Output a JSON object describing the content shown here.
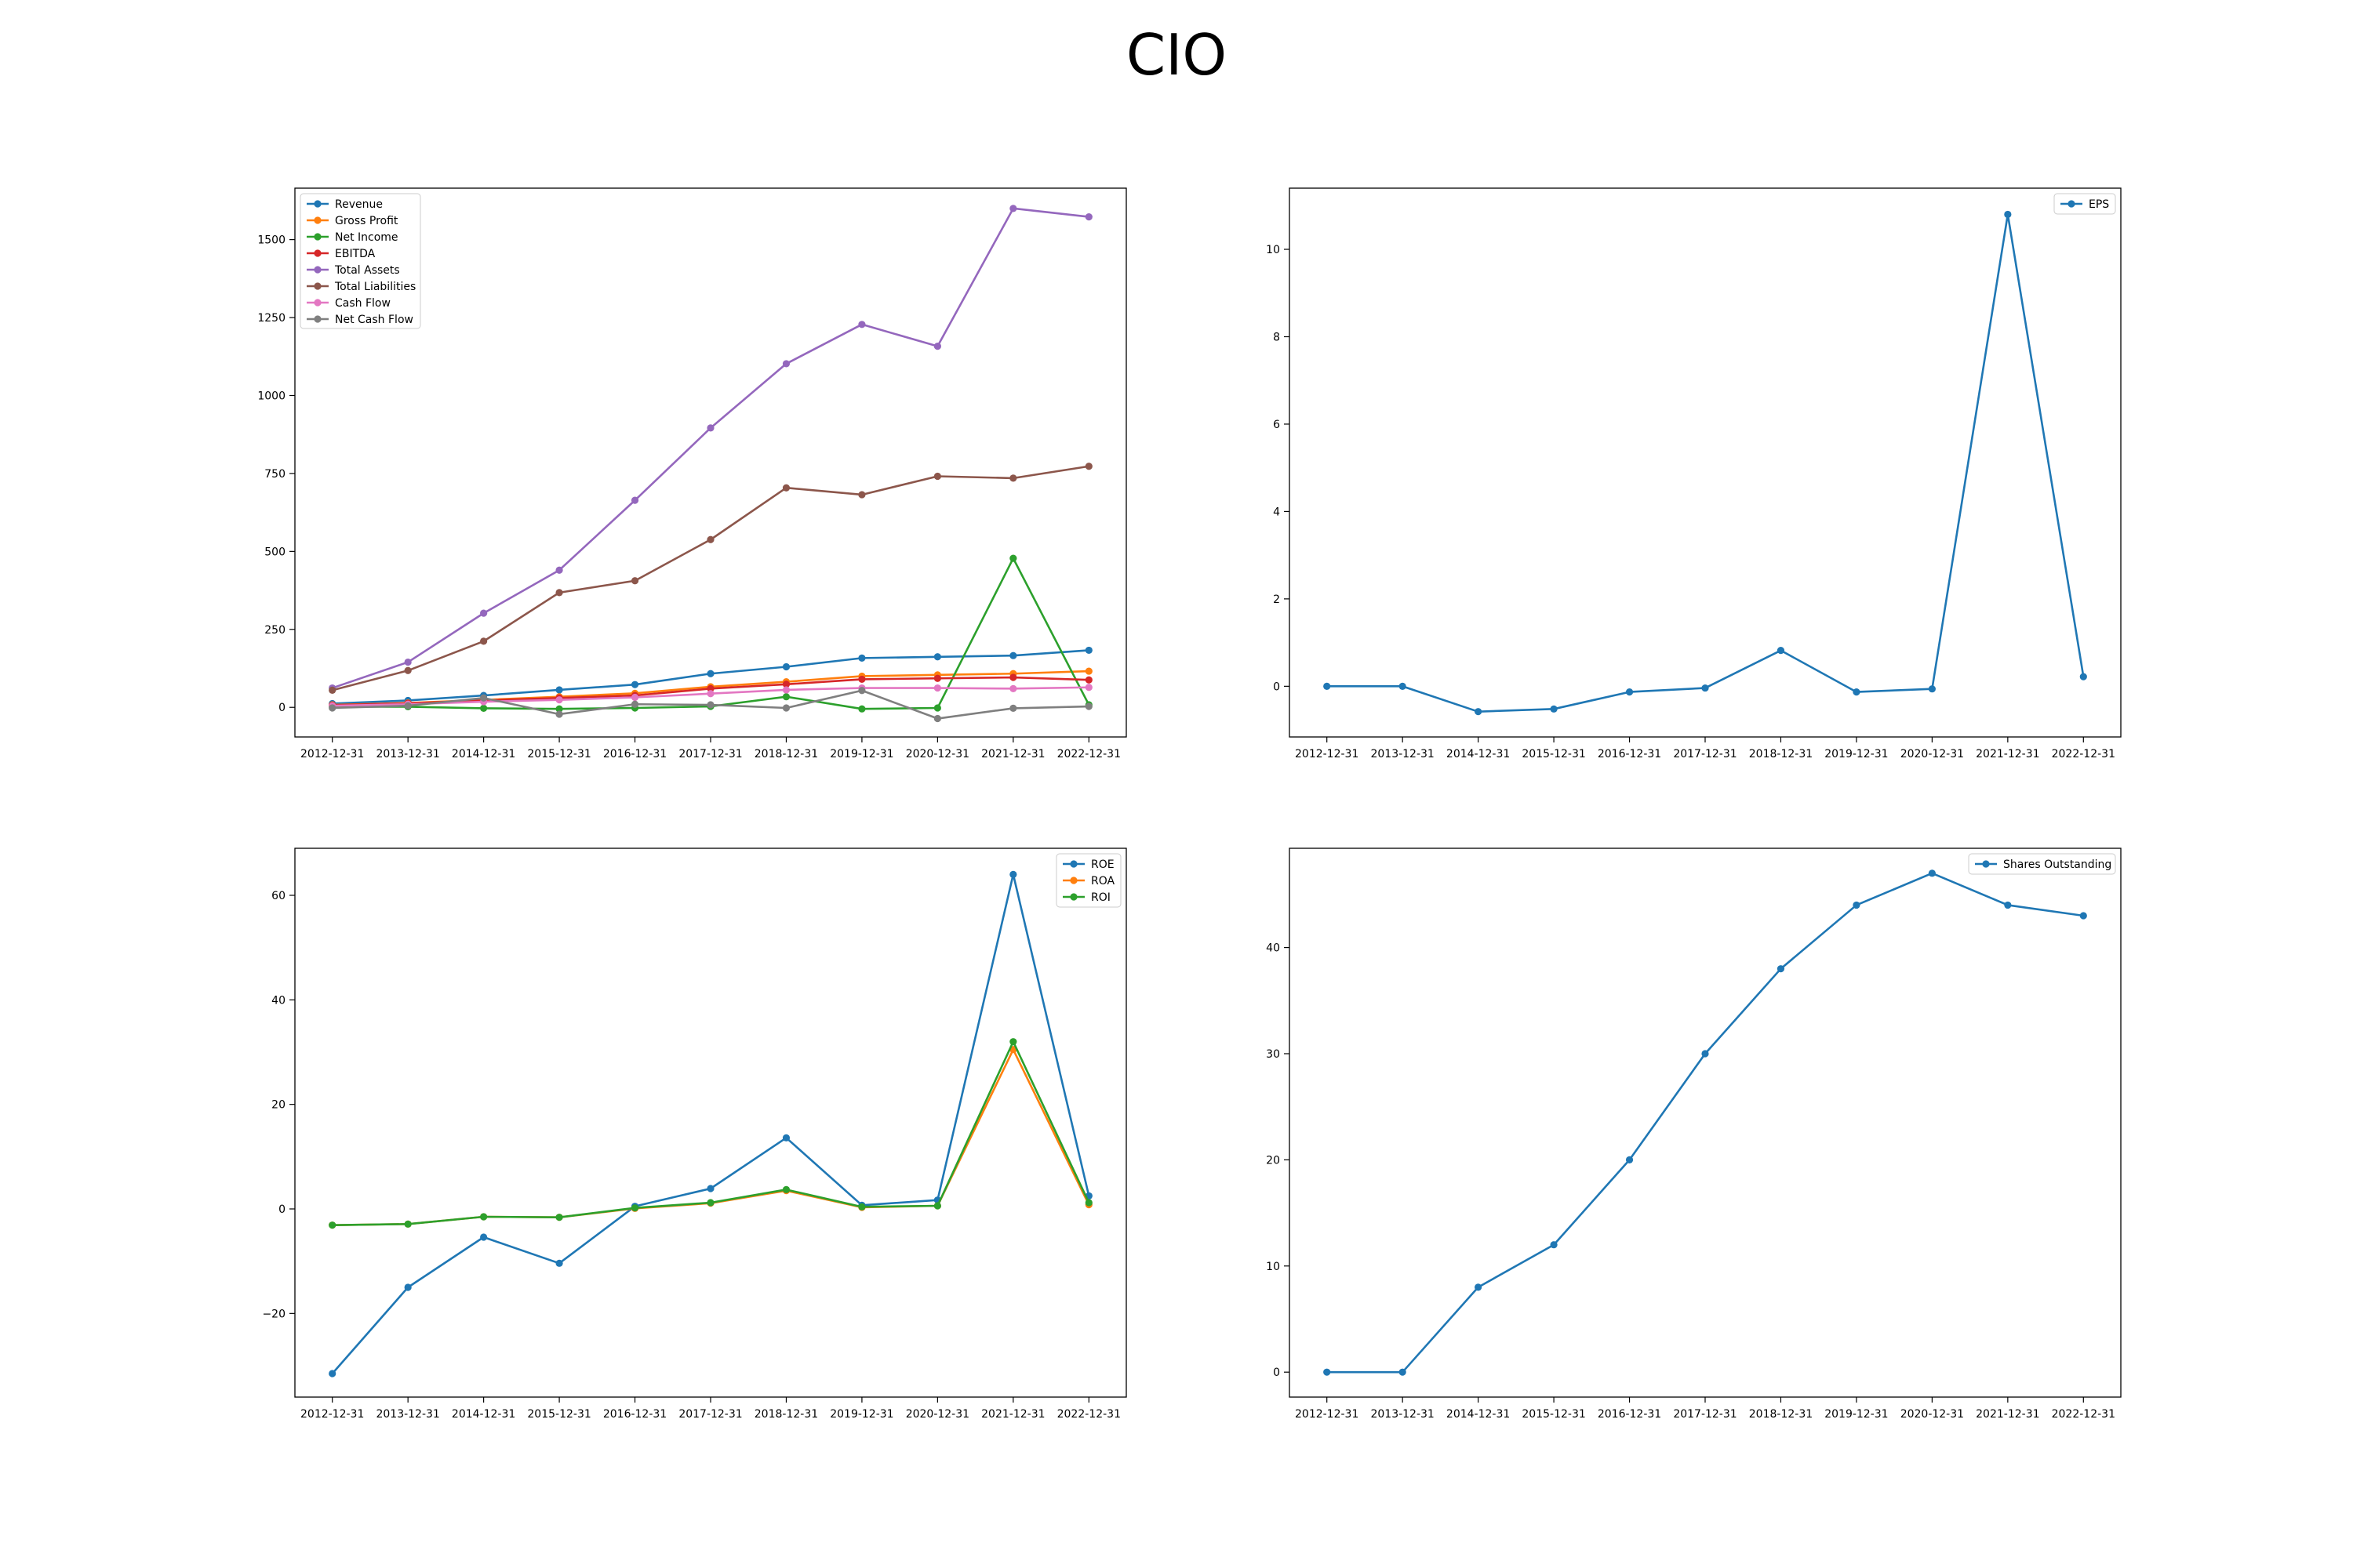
{
  "figure": {
    "title": "CIO"
  },
  "chart_data": [
    {
      "type": "line",
      "x": [
        "2012-12-31",
        "2013-12-31",
        "2014-12-31",
        "2015-12-31",
        "2016-12-31",
        "2017-12-31",
        "2018-12-31",
        "2019-12-31",
        "2020-12-31",
        "2021-12-31",
        "2022-12-31"
      ],
      "ylim": [
        -95,
        1665
      ],
      "yticks": [
        0,
        250,
        500,
        750,
        1000,
        1250,
        1500
      ],
      "yticklabels": [
        "0",
        "250",
        "500",
        "750",
        "1000",
        "1250",
        "1500"
      ],
      "legend": "upper left",
      "series": [
        {
          "name": "Revenue",
          "color": "#1f77b4",
          "values": [
            12,
            22,
            38,
            56,
            73,
            108,
            130,
            158,
            162,
            166,
            183
          ]
        },
        {
          "name": "Gross Profit",
          "color": "#ff7f0e",
          "values": [
            8,
            14,
            24,
            34,
            45,
            66,
            82,
            100,
            104,
            108,
            116
          ]
        },
        {
          "name": "Net Income",
          "color": "#2ca02c",
          "values": [
            2,
            2,
            -3,
            -5,
            -2,
            3,
            34,
            -5,
            -2,
            478,
            8
          ]
        },
        {
          "name": "EBITDA",
          "color": "#d62728",
          "values": [
            7,
            13,
            22,
            30,
            38,
            60,
            74,
            90,
            93,
            96,
            88
          ]
        },
        {
          "name": "Total Assets",
          "color": "#9467bd",
          "values": [
            62,
            145,
            302,
            440,
            664,
            896,
            1102,
            1228,
            1158,
            1600,
            1573
          ]
        },
        {
          "name": "Total Liabilities",
          "color": "#8c564b",
          "values": [
            55,
            118,
            212,
            368,
            406,
            538,
            704,
            682,
            741,
            735,
            773
          ]
        },
        {
          "name": "Cash Flow",
          "color": "#e377c2",
          "values": [
            5,
            10,
            18,
            24,
            32,
            44,
            56,
            62,
            62,
            60,
            64
          ]
        },
        {
          "name": "Net Cash Flow",
          "color": "#7f7f7f",
          "values": [
            -2,
            5,
            30,
            -22,
            10,
            8,
            -2,
            54,
            -36,
            -3,
            3
          ]
        }
      ]
    },
    {
      "type": "line",
      "x": [
        "2012-12-31",
        "2013-12-31",
        "2014-12-31",
        "2015-12-31",
        "2016-12-31",
        "2017-12-31",
        "2018-12-31",
        "2019-12-31",
        "2020-12-31",
        "2021-12-31",
        "2022-12-31"
      ],
      "ylim": [
        -1.16,
        11.4
      ],
      "yticks": [
        0,
        2,
        4,
        6,
        8,
        10
      ],
      "yticklabels": [
        "0",
        "2",
        "4",
        "6",
        "8",
        "10"
      ],
      "legend": "upper right",
      "series": [
        {
          "name": "EPS",
          "color": "#1f77b4",
          "values": [
            0,
            0,
            -0.58,
            -0.52,
            -0.13,
            -0.04,
            0.82,
            -0.13,
            -0.06,
            10.8,
            0.22
          ]
        }
      ]
    },
    {
      "type": "line",
      "x": [
        "2012-12-31",
        "2013-12-31",
        "2014-12-31",
        "2015-12-31",
        "2016-12-31",
        "2017-12-31",
        "2018-12-31",
        "2019-12-31",
        "2020-12-31",
        "2021-12-31",
        "2022-12-31"
      ],
      "ylim": [
        -36,
        69
      ],
      "yticks": [
        -20,
        0,
        20,
        40,
        60
      ],
      "yticklabels": [
        "−20",
        "0",
        "20",
        "40",
        "60"
      ],
      "legend": "upper right",
      "series": [
        {
          "name": "ROE",
          "color": "#1f77b4",
          "values": [
            -31.5,
            -15.0,
            -5.4,
            -10.4,
            0.5,
            3.9,
            13.6,
            0.7,
            1.7,
            64.0,
            2.5
          ]
        },
        {
          "name": "ROA",
          "color": "#ff7f0e",
          "values": [
            -3.1,
            -2.9,
            -1.5,
            -1.6,
            0.1,
            1.1,
            3.5,
            0.3,
            0.6,
            30.5,
            0.8
          ]
        },
        {
          "name": "ROI",
          "color": "#2ca02c",
          "values": [
            -3.1,
            -2.9,
            -1.5,
            -1.6,
            0.2,
            1.2,
            3.7,
            0.4,
            0.6,
            32.0,
            1.2
          ]
        }
      ]
    },
    {
      "type": "line",
      "x": [
        "2012-12-31",
        "2013-12-31",
        "2014-12-31",
        "2015-12-31",
        "2016-12-31",
        "2017-12-31",
        "2018-12-31",
        "2019-12-31",
        "2020-12-31",
        "2021-12-31",
        "2022-12-31"
      ],
      "ylim": [
        -2.35,
        49.35
      ],
      "yticks": [
        0,
        10,
        20,
        30,
        40
      ],
      "yticklabels": [
        "0",
        "10",
        "20",
        "30",
        "40"
      ],
      "legend": "upper right",
      "series": [
        {
          "name": "Shares Outstanding",
          "color": "#1f77b4",
          "values": [
            0,
            0,
            8,
            12,
            20,
            30,
            38,
            44,
            47,
            44,
            43
          ]
        }
      ]
    }
  ]
}
